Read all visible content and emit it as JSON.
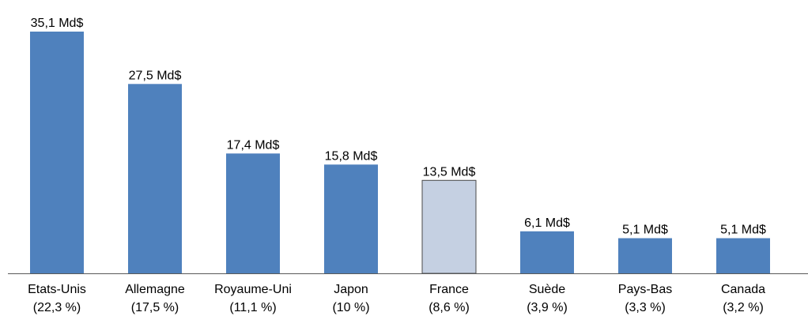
{
  "chart_data": {
    "type": "bar",
    "title": "",
    "xlabel": "",
    "ylabel": "",
    "ylim": [
      0,
      35.1
    ],
    "grid": false,
    "legend": false,
    "categories": [
      {
        "name": "Etats-Unis",
        "share": "(22,3 %)",
        "value": 35.1,
        "label": "35,1 Md$",
        "highlight": false
      },
      {
        "name": "Allemagne",
        "share": "(17,5 %)",
        "value": 27.5,
        "label": "27,5 Md$",
        "highlight": false
      },
      {
        "name": "Royaume-Uni",
        "share": "(11,1 %)",
        "value": 17.4,
        "label": "17,4 Md$",
        "highlight": false
      },
      {
        "name": "Japon",
        "share": "(10 %)",
        "value": 15.8,
        "label": "15,8 Md$",
        "highlight": false
      },
      {
        "name": "France",
        "share": "(8,6 %)",
        "value": 13.5,
        "label": "13,5 Md$",
        "highlight": true
      },
      {
        "name": "Suède",
        "share": "(3,9 %)",
        "value": 6.1,
        "label": "6,1 Md$",
        "highlight": false
      },
      {
        "name": "Pays-Bas",
        "share": "(3,3 %)",
        "value": 5.1,
        "label": "5,1 Md$",
        "highlight": false
      },
      {
        "name": "Canada",
        "share": "(3,2 %)",
        "value": 5.1,
        "label": "5,1 Md$",
        "highlight": false
      }
    ],
    "colors": {
      "bar": "#4f81bd",
      "highlight_bar": "#c5d0e2",
      "highlight_border": "#4a4a4a",
      "axis": "#595959"
    }
  }
}
